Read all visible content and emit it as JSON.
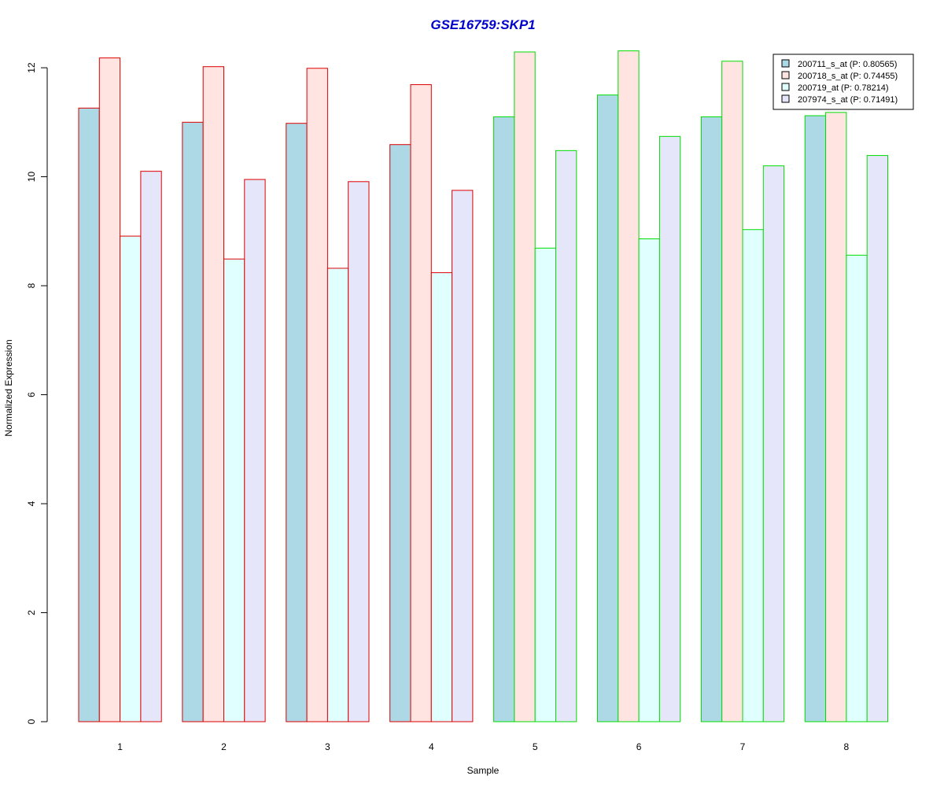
{
  "chart_data": {
    "type": "bar",
    "title": "GSE16759:SKP1",
    "title_color": "#0000cc",
    "xlabel": "Sample",
    "ylabel": "Normalized Expression",
    "ylim": [
      0,
      12.55
    ],
    "yticks": [
      0,
      2,
      4,
      6,
      8,
      10,
      12
    ],
    "categories": [
      "1",
      "2",
      "3",
      "4",
      "5",
      "6",
      "7",
      "8"
    ],
    "group_border_colors": [
      "#dd0000",
      "#dd0000",
      "#dd0000",
      "#dd0000",
      "#00dd00",
      "#00dd00",
      "#00dd00",
      "#00dd00"
    ],
    "legend_position": "top-right",
    "series": [
      {
        "name": "200711_s_at (P: 0.80565)",
        "color": "#add8e6",
        "values": [
          11.26,
          11.0,
          10.98,
          10.59,
          11.1,
          11.5,
          11.1,
          11.12
        ]
      },
      {
        "name": "200718_s_at (P: 0.74455)",
        "color": "#ffe4e1",
        "values": [
          12.18,
          12.02,
          11.99,
          11.69,
          12.29,
          12.31,
          12.12,
          11.18
        ]
      },
      {
        "name": "200719_at (P: 0.78214)",
        "color": "#e0ffff",
        "values": [
          8.91,
          8.49,
          8.32,
          8.24,
          8.69,
          8.86,
          9.03,
          8.56
        ]
      },
      {
        "name": "207974_s_at (P: 0.71491)",
        "color": "#e6e6fa",
        "values": [
          10.1,
          9.95,
          9.91,
          9.75,
          10.48,
          10.74,
          10.2,
          10.39
        ]
      }
    ]
  }
}
